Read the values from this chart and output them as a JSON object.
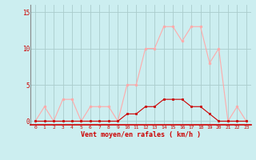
{
  "hours": [
    0,
    1,
    2,
    3,
    4,
    5,
    6,
    7,
    8,
    9,
    10,
    11,
    12,
    13,
    14,
    15,
    16,
    17,
    18,
    19,
    20,
    21,
    22,
    23
  ],
  "wind_avg": [
    0,
    0,
    0,
    0,
    0,
    0,
    0,
    0,
    0,
    0,
    1,
    1,
    2,
    2,
    3,
    3,
    3,
    2,
    2,
    1,
    0,
    0,
    0,
    0
  ],
  "wind_gust": [
    0,
    2,
    0,
    3,
    3,
    0,
    2,
    2,
    2,
    0,
    5,
    5,
    10,
    10,
    13,
    13,
    11,
    13,
    13,
    8,
    10,
    0,
    2,
    0
  ],
  "color_avg": "#cc0000",
  "color_gust": "#ffaaaa",
  "bg_color": "#cceef0",
  "grid_color": "#aacccc",
  "xlabel": "Vent moyen/en rafales ( km/h )",
  "ylim": [
    0,
    15
  ],
  "yticks": [
    0,
    5,
    10,
    15
  ],
  "title_color": "#cc0000"
}
